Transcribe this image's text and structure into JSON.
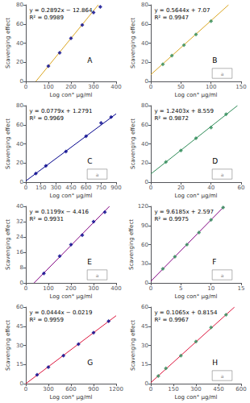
{
  "chart_data": [
    {
      "type": "scatter",
      "title": "A",
      "annotations": [
        "y = 0.2892x − 12.864",
        "R² = 0.9989"
      ],
      "xlabel": "Log con° μg/ml",
      "ylabel": "Scavenging effect",
      "xlim": [
        0,
        400
      ],
      "ylim": [
        0,
        80
      ],
      "xticks": [
        0,
        100,
        200,
        300,
        400
      ],
      "yticks": [
        0,
        20,
        40,
        60,
        80
      ],
      "grid": false,
      "series": [
        {
          "type": "line",
          "color": "#DAA520",
          "x": [
            44.4813,
            321.1065
          ],
          "values": [
            0,
            80
          ]
        },
        {
          "type": "scatter",
          "color": "#00008B",
          "marker": "diamond",
          "x": [
            100,
            150,
            200,
            250,
            300,
            330
          ],
          "values": [
            16,
            30,
            45,
            59,
            72,
            78
          ]
        }
      ]
    },
    {
      "type": "scatter",
      "title": "B",
      "annotations": [
        "y = 0.5644x + 7.07",
        "R² = 0.9947"
      ],
      "box_label": "a",
      "xlabel": "Log con° μg/ml",
      "ylabel": "Scavenging effect",
      "xlim": [
        0,
        150
      ],
      "ylim": [
        0,
        80
      ],
      "xticks": [
        0,
        50,
        100,
        150
      ],
      "yticks": [
        0,
        20,
        40,
        60,
        80
      ],
      "grid": false,
      "series": [
        {
          "type": "line",
          "color": "#DAA520",
          "x": [
            0,
            129.2169
          ],
          "values": [
            7.07,
            80
          ]
        },
        {
          "type": "scatter",
          "color": "#2E8B57",
          "marker": "diamond",
          "x": [
            20,
            35,
            55,
            75,
            100
          ],
          "values": [
            18,
            27,
            38,
            49,
            63
          ]
        }
      ]
    },
    {
      "type": "scatter",
      "title": "C",
      "annotations": [
        "y = 0.0779x + 1.2791",
        "R² = 0.9969"
      ],
      "box_label": "a",
      "xlabel": "Log con° μg/ml",
      "ylabel": "Scavenging effect",
      "xlim": [
        0,
        900
      ],
      "ylim": [
        0,
        80
      ],
      "xticks": [
        0,
        150,
        300,
        450,
        600,
        750,
        900
      ],
      "yticks": [
        0,
        20,
        40,
        60,
        80
      ],
      "grid": false,
      "series": [
        {
          "type": "line",
          "color": "#00008B",
          "x": [
            0,
            900
          ],
          "values": [
            1.2791,
            71.3891
          ]
        },
        {
          "type": "scatter",
          "color": "#00008B",
          "marker": "diamond",
          "x": [
            100,
            200,
            400,
            600,
            750,
            850
          ],
          "values": [
            9,
            17,
            32,
            48,
            62,
            68
          ]
        }
      ]
    },
    {
      "type": "scatter",
      "title": "D",
      "annotations": [
        "y = 1.2403x + 8.559",
        "R² = 0.9872"
      ],
      "box_label": "a",
      "xlabel": "Log con° μg/ml",
      "ylabel": "Scavenging effect",
      "xlim": [
        0,
        60
      ],
      "ylim": [
        0,
        80
      ],
      "xticks": [
        0,
        20,
        40,
        60
      ],
      "yticks": [
        0,
        20,
        40,
        60,
        80
      ],
      "grid": false,
      "series": [
        {
          "type": "line",
          "color": "#2E8B57",
          "x": [
            0,
            57.5998
          ],
          "values": [
            8.559,
            80
          ]
        },
        {
          "type": "scatter",
          "color": "#2E8B57",
          "marker": "diamond",
          "x": [
            10,
            20,
            30,
            40,
            50
          ],
          "values": [
            21,
            33,
            46,
            57,
            71
          ]
        }
      ]
    },
    {
      "type": "scatter",
      "title": "E",
      "annotations": [
        "y = 0.1199x − 4.416",
        "R² = 0.9931"
      ],
      "box_label": "a",
      "xlabel": "Log con° μg/ml",
      "ylabel": "Scavenging effect",
      "xlim": [
        0,
        400
      ],
      "ylim": [
        0,
        40
      ],
      "xticks": [
        0,
        100,
        200,
        300,
        400
      ],
      "yticks": [
        0,
        8,
        16,
        24,
        32,
        40
      ],
      "grid": false,
      "series": [
        {
          "type": "line",
          "color": "#800080",
          "x": [
            36.8307,
            370.442
          ],
          "values": [
            0,
            40
          ]
        },
        {
          "type": "scatter",
          "color": "#00008B",
          "marker": "diamond",
          "x": [
            80,
            150,
            200,
            250,
            300,
            350
          ],
          "values": [
            5,
            14,
            20,
            25,
            32,
            37
          ]
        }
      ]
    },
    {
      "type": "scatter",
      "title": "F",
      "annotations": [
        "y = 9.6185x + 2.597",
        "R² = 0.9975"
      ],
      "box_label": "a",
      "xlabel": "Log con° μg/ml",
      "ylabel": "Scavenging effect",
      "xlim": [
        0,
        15
      ],
      "ylim": [
        0,
        120
      ],
      "xticks": [
        0,
        5,
        10,
        15
      ],
      "yticks": [
        0,
        30,
        60,
        90,
        120
      ],
      "grid": false,
      "series": [
        {
          "type": "line",
          "color": "#800080",
          "x": [
            0,
            12.206
          ],
          "values": [
            2.597,
            120
          ]
        },
        {
          "type": "scatter",
          "color": "#2E8B57",
          "marker": "diamond",
          "x": [
            2,
            4,
            6,
            8,
            10,
            12
          ],
          "values": [
            22,
            41,
            60,
            79,
            99,
            118
          ]
        }
      ]
    },
    {
      "type": "scatter",
      "title": "G",
      "annotations": [
        "y = 0.0444x − 0.0219",
        "R² = 0.9959"
      ],
      "xlabel": "Log con° μg/ml",
      "ylabel": "Scavenging effect",
      "xlim": [
        0,
        1200
      ],
      "ylim": [
        0,
        60
      ],
      "xticks": [
        0,
        300,
        600,
        900,
        1200
      ],
      "yticks": [
        0,
        15,
        30,
        45,
        60
      ],
      "grid": false,
      "series": [
        {
          "type": "line",
          "color": "#DC143C",
          "x": [
            0.4932,
            1200
          ],
          "values": [
            0,
            53.2581
          ]
        },
        {
          "type": "scatter",
          "color": "#00008B",
          "marker": "diamond",
          "x": [
            150,
            300,
            500,
            700,
            900,
            1100
          ],
          "values": [
            7,
            13,
            22,
            31,
            40,
            49
          ]
        }
      ]
    },
    {
      "type": "scatter",
      "title": "H",
      "annotations": [
        "y = 0.1065x + 0.8154",
        "R² = 0.9967"
      ],
      "box_label": "a",
      "xlabel": "Log con° μg/ml",
      "ylabel": "Scavenging effect",
      "xlim": [
        0,
        600
      ],
      "ylim": [
        0,
        60
      ],
      "xticks": [
        0,
        150,
        300,
        450,
        600
      ],
      "yticks": [
        0,
        15,
        30,
        45,
        60
      ],
      "grid": false,
      "series": [
        {
          "type": "line",
          "color": "#DC143C",
          "x": [
            0,
            555.7239
          ],
          "values": [
            0.8154,
            60
          ]
        },
        {
          "type": "scatter",
          "color": "#2E8B57",
          "marker": "diamond",
          "x": [
            50,
            100,
            200,
            300,
            400,
            500
          ],
          "values": [
            6,
            12,
            22,
            33,
            44,
            54
          ]
        }
      ]
    }
  ]
}
